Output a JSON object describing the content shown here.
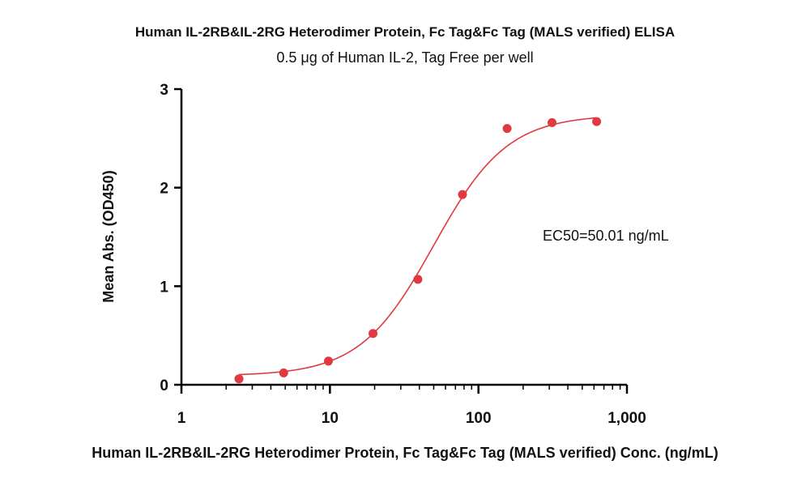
{
  "chart_data": {
    "type": "scatter",
    "title": "Human IL-2RB&IL-2RG Heterodimer Protein, Fc Tag&Fc Tag (MALS verified) ELISA",
    "subtitle": "0.5 μg of Human IL-2, Tag Free per well",
    "xlabel": "Human IL-2RB&IL-2RG Heterodimer Protein, Fc Tag&Fc Tag (MALS verified) Conc. (ng/mL)",
    "ylabel": "Mean Abs. (OD450)",
    "xscale": "log",
    "xlim": [
      1,
      1000
    ],
    "ylim": [
      0,
      3
    ],
    "x_ticks": [
      1,
      10,
      100,
      1000
    ],
    "x_tick_labels": [
      "1",
      "10",
      "100",
      "1,000"
    ],
    "y_ticks": [
      0,
      1,
      2,
      3
    ],
    "y_tick_labels": [
      "0",
      "1",
      "2",
      "3"
    ],
    "series": [
      {
        "name": "ELISA",
        "color": "#e0393f",
        "x": [
          2.44,
          4.88,
          9.77,
          19.5,
          39.1,
          78.1,
          156,
          313,
          625
        ],
        "y": [
          0.06,
          0.12,
          0.24,
          0.52,
          1.07,
          1.93,
          2.6,
          2.66,
          2.67
        ]
      }
    ],
    "fit": {
      "type": "4PL",
      "bottom": 0.09,
      "top": 2.74,
      "ec50": 50.01,
      "hill": 1.75,
      "x_range": [
        2.44,
        625
      ]
    },
    "annotation": "EC50=50.01 ng/mL"
  }
}
